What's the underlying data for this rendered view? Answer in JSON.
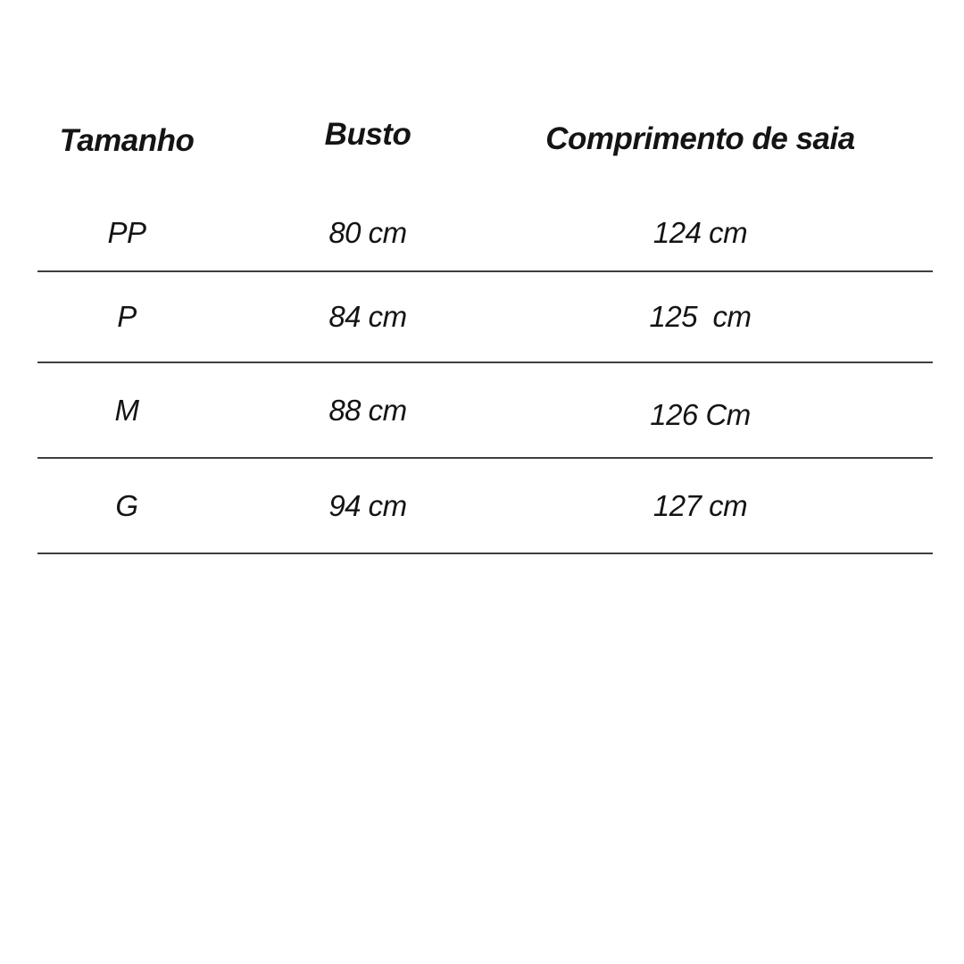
{
  "theme": {
    "text": "#141414",
    "divider": "#3f3f3f",
    "background": "#ffffff"
  },
  "table": {
    "columns": [
      {
        "label": "Tamanho"
      },
      {
        "label": "Busto"
      },
      {
        "label": "Comprimento de saia"
      }
    ],
    "rows": [
      {
        "size": "PP",
        "busto": "80 cm",
        "comprimento": "124 cm"
      },
      {
        "size": "P",
        "busto": "84 cm",
        "comprimento": "125  cm"
      },
      {
        "size": "M",
        "busto": "88 cm",
        "comprimento": "126 Cm"
      },
      {
        "size": "G",
        "busto": "94 cm",
        "comprimento": "127 cm"
      }
    ]
  }
}
